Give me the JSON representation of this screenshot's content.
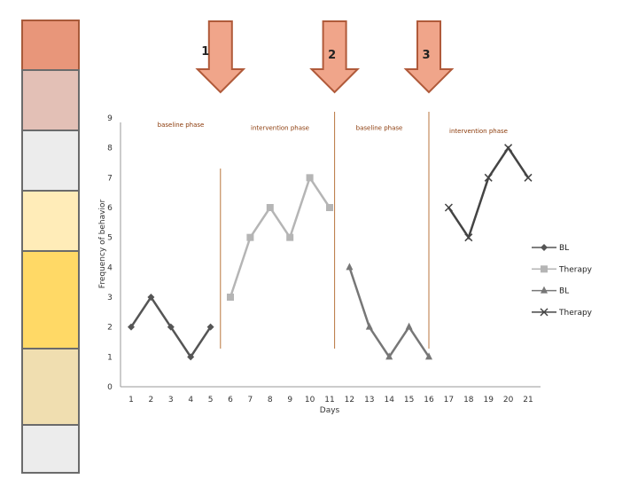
{
  "sidebar": {
    "blocks": [
      {
        "color": "#e8967a",
        "border": "#a85a3a"
      },
      {
        "color": "#e3c0b6",
        "border": "#6b6b6b"
      },
      {
        "color": "#ececec",
        "border": "#6b6b6b"
      },
      {
        "color": "#ffecb8",
        "border": "#6b6b6b"
      },
      {
        "color": "#ffd966",
        "border": "#6b6b6b"
      },
      {
        "color": "#f0deb0",
        "border": "#6b6b6b"
      },
      {
        "color": "#ececec",
        "border": "#6b6b6b"
      }
    ]
  },
  "arrows": [
    {
      "label": "1",
      "at_day": 5.5
    },
    {
      "label": "2",
      "at_day": 11.25
    },
    {
      "label": "3",
      "at_day": 16
    }
  ],
  "colors": {
    "arrow_fill": "#f0a58a",
    "arrow_stroke": "#b05a3a",
    "phase_line": "#b8743c"
  },
  "chart_data": {
    "type": "line",
    "xlabel": "Days",
    "ylabel": "Frequency of behavior",
    "x_ticks": [
      1,
      2,
      3,
      4,
      5,
      6,
      7,
      8,
      9,
      10,
      11,
      12,
      13,
      14,
      15,
      16,
      17,
      18,
      19,
      20,
      21
    ],
    "y_ticks": [
      0,
      1,
      2,
      3,
      4,
      5,
      6,
      7,
      8,
      9
    ],
    "xlim": [
      0.5,
      21.5
    ],
    "ylim": [
      0,
      9
    ],
    "grid": false,
    "legend_position": "right",
    "phase_lines": [
      5.5,
      11.25,
      16
    ],
    "phase_labels": [
      {
        "text": "baseline phase",
        "x_day": 3.5,
        "y": 8.7
      },
      {
        "text": "intervention phase",
        "x_day": 8.5,
        "y": 8.6
      },
      {
        "text": "baseline phase",
        "x_day": 13.5,
        "y": 8.6
      },
      {
        "text": "intervention phase",
        "x_day": 18.5,
        "y": 8.5
      }
    ],
    "series": [
      {
        "name": "BL",
        "marker": "diamond",
        "color": "#555555",
        "x": [
          1,
          2,
          3,
          4,
          5
        ],
        "y": [
          2,
          3,
          2,
          1,
          2
        ]
      },
      {
        "name": "Therapy",
        "marker": "square",
        "color": "#b5b5b5",
        "x": [
          6,
          7,
          8,
          9,
          10,
          11
        ],
        "y": [
          3,
          5,
          6,
          5,
          7,
          6
        ]
      },
      {
        "name": "BL",
        "marker": "triangle",
        "color": "#777777",
        "x": [
          12,
          13,
          14,
          15,
          16
        ],
        "y": [
          4,
          2,
          1,
          2,
          1
        ]
      },
      {
        "name": "Therapy",
        "marker": "x",
        "color": "#444444",
        "x": [
          17,
          18,
          19,
          20,
          21
        ],
        "y": [
          6,
          5,
          7,
          8,
          7
        ]
      }
    ]
  }
}
